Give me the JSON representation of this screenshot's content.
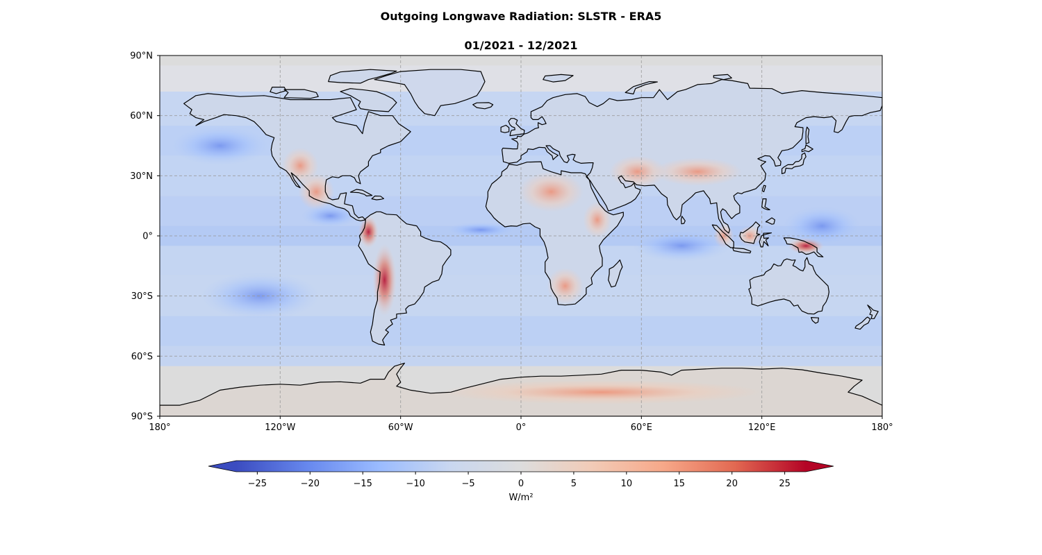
{
  "title": "Outgoing Longwave Radiation: SLSTR - ERA5",
  "subtitle": "01/2021 - 12/2021",
  "map": {
    "projection": "PlateCarree",
    "extent_lon": [
      -180,
      180
    ],
    "extent_lat": [
      -90,
      90
    ],
    "gridlines": true,
    "lat_ticks": [
      {
        "value": 90,
        "label": "90°N"
      },
      {
        "value": 60,
        "label": "60°N"
      },
      {
        "value": 30,
        "label": "30°N"
      },
      {
        "value": 0,
        "label": "0°"
      },
      {
        "value": -30,
        "label": "30°S"
      },
      {
        "value": -60,
        "label": "60°S"
      },
      {
        "value": -90,
        "label": "90°S"
      }
    ],
    "lon_ticks": [
      {
        "value": -180,
        "label": "180°"
      },
      {
        "value": -120,
        "label": "120°W"
      },
      {
        "value": -60,
        "label": "60°W"
      },
      {
        "value": 0,
        "label": "0°"
      },
      {
        "value": 60,
        "label": "60°E"
      },
      {
        "value": 120,
        "label": "120°E"
      },
      {
        "value": 180,
        "label": "180°"
      }
    ],
    "colormap": "coolwarm",
    "background_color": "#dcdcdc",
    "ocean_color": "#b6cdf5",
    "coastline_color": "#000000",
    "hotspots": [
      {
        "name": "andes",
        "lon": -68,
        "lat": -22,
        "value": 25
      },
      {
        "name": "andes-north",
        "lon": -76,
        "lat": 2,
        "value": 22
      },
      {
        "name": "mexico",
        "lon": -102,
        "lat": 22,
        "value": 12
      },
      {
        "name": "us-rockies",
        "lon": -110,
        "lat": 35,
        "value": 8
      },
      {
        "name": "tibet",
        "lon": 88,
        "lat": 32,
        "value": 14
      },
      {
        "name": "iran",
        "lon": 58,
        "lat": 32,
        "value": 10
      },
      {
        "name": "new-guinea",
        "lon": 142,
        "lat": -5,
        "value": 25
      },
      {
        "name": "southern-africa",
        "lon": 22,
        "lat": -25,
        "value": 10
      },
      {
        "name": "sahara",
        "lon": 15,
        "lat": 22,
        "value": 8
      },
      {
        "name": "east-africa",
        "lon": 38,
        "lat": 8,
        "value": 12
      },
      {
        "name": "borneo",
        "lon": 114,
        "lat": 0,
        "value": 14
      },
      {
        "name": "sumatra",
        "lon": 101,
        "lat": 0,
        "value": 12
      },
      {
        "name": "antarctica",
        "lon": 40,
        "lat": -78,
        "value": 6
      }
    ],
    "coldspots": [
      {
        "name": "atlantic-itcz",
        "lon": -20,
        "lat": 3,
        "value": -14
      },
      {
        "name": "pacific-east",
        "lon": -95,
        "lat": 10,
        "value": -12
      },
      {
        "name": "north-pacific",
        "lon": -150,
        "lat": 45,
        "value": -10
      },
      {
        "name": "indian-ocean",
        "lon": 80,
        "lat": -5,
        "value": -10
      },
      {
        "name": "western-pacific",
        "lon": 150,
        "lat": 5,
        "value": -12
      },
      {
        "name": "south-pacific",
        "lon": -130,
        "lat": -30,
        "value": -8
      }
    ]
  },
  "colorbar": {
    "label": "W/m²",
    "min": -27,
    "max": 27,
    "extend": "both",
    "ticks": [
      {
        "value": -25,
        "label": "−25"
      },
      {
        "value": -20,
        "label": "−20"
      },
      {
        "value": -15,
        "label": "−15"
      },
      {
        "value": -10,
        "label": "−10"
      },
      {
        "value": -5,
        "label": "−5"
      },
      {
        "value": 0,
        "label": "0"
      },
      {
        "value": 5,
        "label": "5"
      },
      {
        "value": 10,
        "label": "10"
      },
      {
        "value": 15,
        "label": "15"
      },
      {
        "value": 20,
        "label": "20"
      },
      {
        "value": 25,
        "label": "25"
      }
    ],
    "colors": [
      "#3b4cc0",
      "#6788ee",
      "#9abbff",
      "#c9d7f0",
      "#dddddd",
      "#f2cbb7",
      "#f7a889",
      "#e26952",
      "#b40426"
    ]
  }
}
